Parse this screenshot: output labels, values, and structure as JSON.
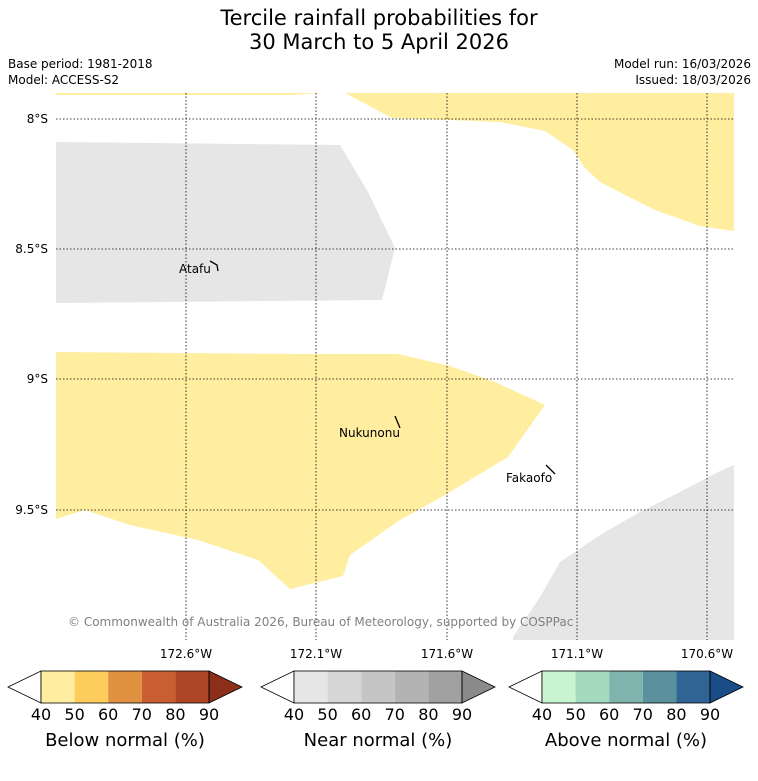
{
  "title": {
    "line1": "Tercile rainfall probabilities for",
    "line2": "30 March to 5 April 2026"
  },
  "meta": {
    "base_period": "Base period: 1981-2018",
    "model": "Model: ACCESS-S2",
    "model_run": "Model run: 16/03/2026",
    "issued": "Issued: 18/03/2026"
  },
  "map": {
    "lat_labels": [
      "8°S",
      "8.5°S",
      "9°S",
      "9.5°S"
    ],
    "lon_labels": [
      "172.6°W",
      "172.1°W",
      "171.6°W",
      "171.1°W",
      "170.6°W"
    ],
    "places": [
      "Atafu",
      "Nukunonu",
      "Fakaofo"
    ],
    "copyright": "© Commonwealth of Australia 2026, Bureau of Meteorology, supported by COSPPac",
    "colors": {
      "below_light": "#ffeda0",
      "near_light": "#e6e6e6"
    }
  },
  "colorbars": [
    {
      "label": "Below normal (%)",
      "ticks": [
        "40",
        "50",
        "60",
        "70",
        "80",
        "90"
      ],
      "colors": [
        "#ffffff",
        "#ffeda0",
        "#fecc5c",
        "#e0913f",
        "#c95f30",
        "#ad4526",
        "#8b2e1a"
      ]
    },
    {
      "label": "Near normal (%)",
      "ticks": [
        "40",
        "50",
        "60",
        "70",
        "80",
        "90"
      ],
      "colors": [
        "#ffffff",
        "#e6e6e6",
        "#d6d6d6",
        "#c5c5c5",
        "#b3b3b3",
        "#a0a0a0",
        "#8a8a8a"
      ]
    },
    {
      "label": "Above normal (%)",
      "ticks": [
        "40",
        "50",
        "60",
        "70",
        "80",
        "90"
      ],
      "colors": [
        "#ffffff",
        "#c7f5d2",
        "#a3d9bd",
        "#7fb4ae",
        "#5a919d",
        "#2f6494",
        "#1a4c88"
      ]
    }
  ]
}
